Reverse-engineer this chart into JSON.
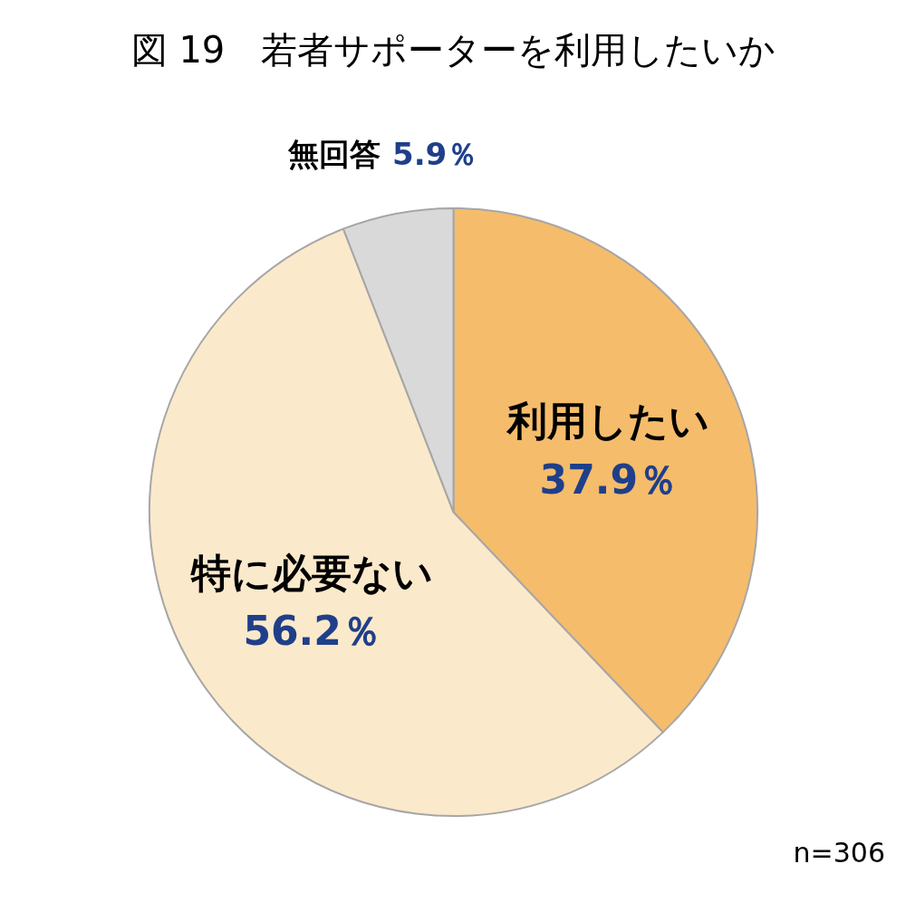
{
  "chart_data": {
    "type": "pie",
    "title": "図 19　若者サポーターを利用したいか",
    "categories": [
      "利用したい",
      "特に必要ない",
      "無回答"
    ],
    "values": [
      37.9,
      56.2,
      5.9
    ],
    "colors": [
      "#f5bc6b",
      "#fbe9cb",
      "#d9d9d9"
    ],
    "value_labels": [
      "37.9％",
      "56.2％",
      "5.9％"
    ],
    "annotations": [
      "n=306"
    ]
  }
}
